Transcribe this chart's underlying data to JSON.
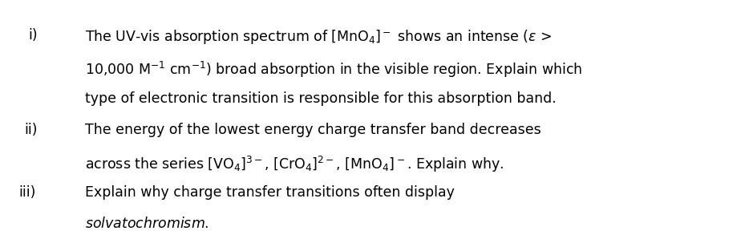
{
  "background_color": "#ffffff",
  "text_color": "#000000",
  "fig_width": 9.24,
  "fig_height": 2.98,
  "dpi": 100,
  "font_size": 12.5,
  "label_font_size": 12.5,
  "items": [
    {
      "label": "i)",
      "label_fx": 0.038,
      "lines": [
        {
          "fy": 0.885,
          "fx": 0.115,
          "text": "The UV-vis absorption spectrum of [MnO$_4$]$^-$ shows an intense ($\\varepsilon$ >",
          "italic": false
        },
        {
          "fy": 0.7,
          "fx": 0.115,
          "text": "10,000 M$^{-1}$ cm$^{-1}$) broad absorption in the visible region. Explain which",
          "italic": false
        },
        {
          "fy": 0.515,
          "fx": 0.115,
          "text": "type of electronic transition is responsible for this absorption band.",
          "italic": false
        }
      ],
      "label_fy": 0.885
    },
    {
      "label": "ii)",
      "label_fx": 0.033,
      "lines": [
        {
          "fy": 0.33,
          "fx": 0.115,
          "text": "The energy of the lowest energy charge transfer band decreases",
          "italic": false
        },
        {
          "fy": 0.145,
          "fx": 0.115,
          "text": "across the series [VO$_4$]$^{3-}$, [CrO$_4$]$^{2-}$, [MnO$_4$]$^-$. Explain why.",
          "italic": false
        }
      ],
      "label_fy": 0.33
    },
    {
      "label": "iii)",
      "label_fx": 0.025,
      "lines": [
        {
          "fy": -0.035,
          "fx": 0.115,
          "text": "Explain why charge transfer transitions often display",
          "italic": false
        },
        {
          "fy": -0.22,
          "fx": 0.115,
          "text": "$\\it{solvatochromism}$.",
          "italic": false
        }
      ],
      "label_fy": -0.035
    }
  ]
}
